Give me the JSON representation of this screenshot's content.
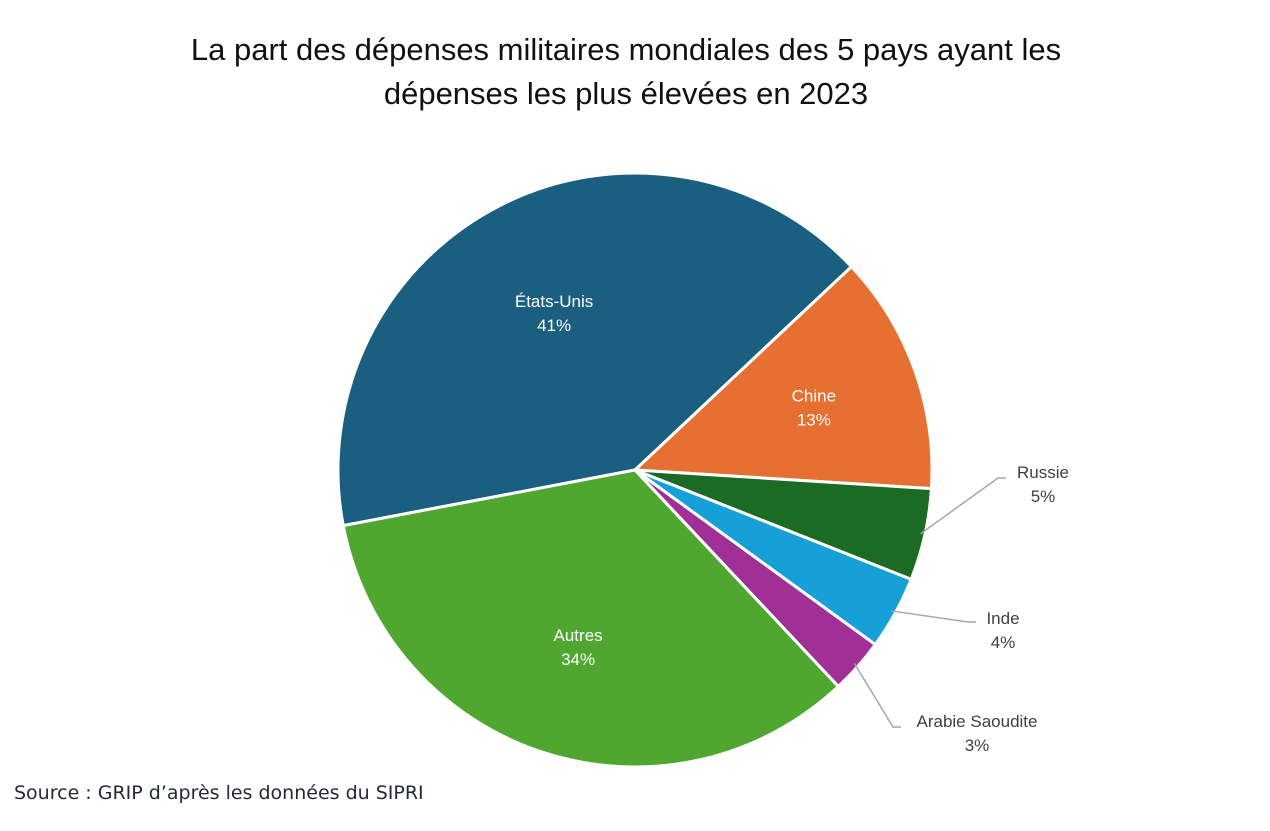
{
  "title": {
    "line1": "La part des dépenses militaires mondiales des 5 pays ayant les",
    "line2": "dépenses les plus élevées en 2023"
  },
  "source": "Source : GRIP d’après les données du SIPRI",
  "chart_data": {
    "type": "pie",
    "title": "La part des dépenses militaires mondiales des 5 pays ayant les dépenses les plus élevées en 2023",
    "unit": "%",
    "direction": "clockwise",
    "slices": [
      {
        "label": "États-Unis",
        "value": 41,
        "value_label": "41%",
        "color": "#1a5e80",
        "label_position": "inside"
      },
      {
        "label": "Chine",
        "value": 13,
        "value_label": "13%",
        "color": "#e67032",
        "label_position": "inside"
      },
      {
        "label": "Russie",
        "value": 5,
        "value_label": "5%",
        "color": "#1b6b25",
        "label_position": "outside"
      },
      {
        "label": "Inde",
        "value": 4,
        "value_label": "4%",
        "color": "#16a0d8",
        "label_position": "outside"
      },
      {
        "label": "Arabie Saoudite",
        "value": 3,
        "value_label": "3%",
        "color": "#a02f96",
        "label_position": "outside"
      },
      {
        "label": "Autres",
        "value": 34,
        "value_label": "34%",
        "color": "#4fa72f",
        "label_position": "inside"
      }
    ],
    "legend": "none",
    "source": "Source : GRIP d’après les données du SIPRI"
  }
}
